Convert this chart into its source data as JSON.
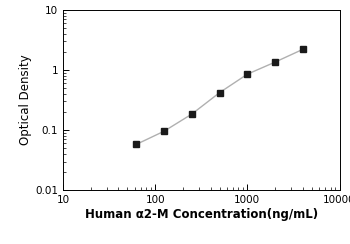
{
  "x": [
    62.5,
    125,
    250,
    500,
    1000,
    2000,
    4000
  ],
  "y": [
    0.058,
    0.096,
    0.185,
    0.42,
    0.85,
    1.35,
    2.2
  ],
  "xlim": [
    10,
    10000
  ],
  "ylim": [
    0.01,
    10
  ],
  "xlabel": "Human α2-M Concentration(ng/mL)",
  "ylabel": "Optical Density",
  "line_color": "#b0b0b0",
  "marker_color": "#1a1a1a",
  "marker": "s",
  "marker_size": 4.5,
  "line_width": 1.0,
  "xlabel_fontsize": 8.5,
  "ylabel_fontsize": 8.5,
  "tick_fontsize": 7.5,
  "background_color": "#ffffff"
}
